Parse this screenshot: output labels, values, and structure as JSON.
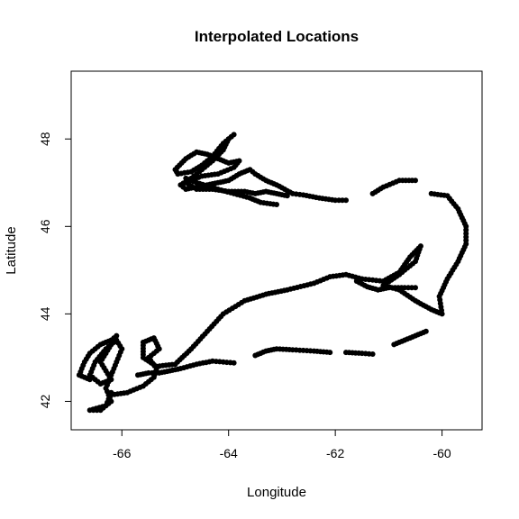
{
  "chart_data": {
    "type": "scatter",
    "title": "Interpolated Locations",
    "xlabel": "Longitude",
    "ylabel": "Latitude",
    "xlim": [
      -66.95,
      -59.25
    ],
    "ylim": [
      41.35,
      49.55
    ],
    "xticks": [
      -66,
      -64,
      -62,
      -60
    ],
    "yticks": [
      42,
      44,
      46,
      48
    ],
    "xtick_labels": [
      "-66",
      "-64",
      "-62",
      "-60"
    ],
    "ytick_labels": [
      "42",
      "44",
      "46",
      "48"
    ],
    "grid": false,
    "legend": "none",
    "marker_color": "#000000",
    "tracks": [
      [
        [
          -66.6,
          42.5
        ],
        [
          -66.8,
          42.6
        ],
        [
          -66.7,
          42.9
        ],
        [
          -66.6,
          43.1
        ],
        [
          -66.4,
          43.3
        ],
        [
          -66.2,
          43.4
        ],
        [
          -66.1,
          43.5
        ],
        [
          -66.2,
          43.3
        ],
        [
          -66.3,
          43.1
        ],
        [
          -66.4,
          42.9
        ],
        [
          -66.3,
          42.7
        ],
        [
          -66.2,
          42.5
        ],
        [
          -66.4,
          42.4
        ],
        [
          -66.6,
          42.6
        ],
        [
          -66.5,
          42.9
        ],
        [
          -66.3,
          43.2
        ],
        [
          -66.1,
          43.4
        ],
        [
          -66.0,
          43.2
        ],
        [
          -66.1,
          42.9
        ],
        [
          -66.2,
          42.6
        ],
        [
          -66.3,
          42.3
        ],
        [
          -66.2,
          42.0
        ],
        [
          -66.4,
          41.8
        ],
        [
          -66.6,
          41.8
        ],
        [
          -66.3,
          41.9
        ],
        [
          -66.2,
          42.2
        ]
      ],
      [
        [
          -66.2,
          42.15
        ],
        [
          -65.9,
          42.2
        ],
        [
          -65.6,
          42.35
        ],
        [
          -65.4,
          42.55
        ],
        [
          -65.35,
          42.75
        ],
        [
          -65.5,
          43.0
        ],
        [
          -65.3,
          43.2
        ],
        [
          -65.4,
          43.45
        ],
        [
          -65.6,
          43.35
        ],
        [
          -65.6,
          43.0
        ],
        [
          -65.35,
          42.8
        ],
        [
          -65.0,
          42.85
        ],
        [
          -64.7,
          43.2
        ],
        [
          -64.4,
          43.6
        ],
        [
          -64.1,
          44.0
        ],
        [
          -63.7,
          44.3
        ],
        [
          -63.3,
          44.45
        ],
        [
          -62.9,
          44.55
        ],
        [
          -62.4,
          44.7
        ],
        [
          -62.1,
          44.85
        ],
        [
          -61.8,
          44.9
        ],
        [
          -61.5,
          44.8
        ],
        [
          -61.1,
          44.75
        ],
        [
          -60.8,
          44.95
        ],
        [
          -60.6,
          45.3
        ],
        [
          -60.4,
          45.55
        ],
        [
          -60.5,
          45.2
        ],
        [
          -60.8,
          44.9
        ],
        [
          -61.1,
          44.65
        ],
        [
          -60.8,
          44.55
        ],
        [
          -60.5,
          44.3
        ],
        [
          -60.2,
          44.1
        ],
        [
          -60.0,
          44.0
        ],
        [
          -60.05,
          44.4
        ],
        [
          -59.9,
          44.8
        ],
        [
          -59.7,
          45.2
        ],
        [
          -59.55,
          45.6
        ],
        [
          -59.55,
          46.0
        ],
        [
          -59.7,
          46.4
        ],
        [
          -59.9,
          46.7
        ],
        [
          -60.2,
          46.75
        ]
      ],
      [
        [
          -60.5,
          47.05
        ],
        [
          -60.8,
          47.05
        ],
        [
          -61.1,
          46.9
        ],
        [
          -61.3,
          46.75
        ]
      ],
      [
        [
          -61.8,
          46.6
        ],
        [
          -62.0,
          46.6
        ],
        [
          -62.3,
          46.65
        ],
        [
          -62.6,
          46.72
        ],
        [
          -62.8,
          46.75
        ],
        [
          -62.95,
          46.85
        ],
        [
          -63.1,
          46.95
        ],
        [
          -63.3,
          47.05
        ],
        [
          -63.5,
          47.2
        ],
        [
          -63.6,
          47.3
        ],
        [
          -63.8,
          47.2
        ],
        [
          -64.0,
          47.05
        ],
        [
          -64.2,
          47.0
        ],
        [
          -64.4,
          46.95
        ],
        [
          -64.6,
          46.9
        ],
        [
          -64.8,
          46.85
        ],
        [
          -64.9,
          46.95
        ],
        [
          -64.7,
          47.1
        ],
        [
          -64.5,
          47.3
        ],
        [
          -64.3,
          47.5
        ],
        [
          -64.1,
          47.75
        ],
        [
          -64.0,
          48.0
        ],
        [
          -63.9,
          48.1
        ],
        [
          -64.1,
          47.9
        ],
        [
          -64.3,
          47.6
        ],
        [
          -64.5,
          47.4
        ],
        [
          -64.7,
          47.25
        ],
        [
          -64.95,
          47.2
        ],
        [
          -65.0,
          47.3
        ],
        [
          -64.8,
          47.55
        ],
        [
          -64.6,
          47.7
        ],
        [
          -64.4,
          47.65
        ],
        [
          -64.2,
          47.55
        ],
        [
          -64.0,
          47.45
        ],
        [
          -63.8,
          47.5
        ],
        [
          -63.9,
          47.35
        ],
        [
          -64.2,
          47.2
        ],
        [
          -64.5,
          47.15
        ],
        [
          -64.8,
          47.0
        ],
        [
          -64.6,
          46.85
        ],
        [
          -64.3,
          46.85
        ],
        [
          -64.0,
          46.8
        ],
        [
          -63.7,
          46.8
        ],
        [
          -63.5,
          46.75
        ],
        [
          -63.3,
          46.8
        ],
        [
          -63.1,
          46.75
        ],
        [
          -62.9,
          46.7
        ]
      ],
      [
        [
          -63.1,
          46.5
        ],
        [
          -63.4,
          46.55
        ],
        [
          -63.6,
          46.65
        ],
        [
          -63.9,
          46.75
        ],
        [
          -64.2,
          46.85
        ],
        [
          -64.6,
          47.0
        ],
        [
          -64.8,
          47.1
        ]
      ],
      [
        [
          -65.7,
          42.6
        ],
        [
          -65.5,
          42.65
        ],
        [
          -65.3,
          42.65
        ],
        [
          -65.1,
          42.7
        ],
        [
          -64.9,
          42.75
        ],
        [
          -64.6,
          42.85
        ],
        [
          -64.3,
          42.92
        ],
        [
          -64.1,
          42.9
        ],
        [
          -63.9,
          42.88
        ]
      ],
      [
        [
          -63.5,
          43.05
        ],
        [
          -63.3,
          43.15
        ],
        [
          -63.1,
          43.2
        ],
        [
          -62.8,
          43.18
        ],
        [
          -62.4,
          43.15
        ],
        [
          -62.1,
          43.12
        ]
      ],
      [
        [
          -61.8,
          43.12
        ],
        [
          -61.5,
          43.1
        ],
        [
          -61.3,
          43.08
        ]
      ],
      [
        [
          -60.9,
          43.3
        ],
        [
          -60.7,
          43.4
        ],
        [
          -60.5,
          43.5
        ],
        [
          -60.3,
          43.6
        ]
      ],
      [
        [
          -61.6,
          44.75
        ],
        [
          -61.4,
          44.62
        ],
        [
          -61.2,
          44.55
        ],
        [
          -61.0,
          44.6
        ],
        [
          -60.7,
          44.6
        ],
        [
          -60.5,
          44.6
        ]
      ]
    ]
  }
}
